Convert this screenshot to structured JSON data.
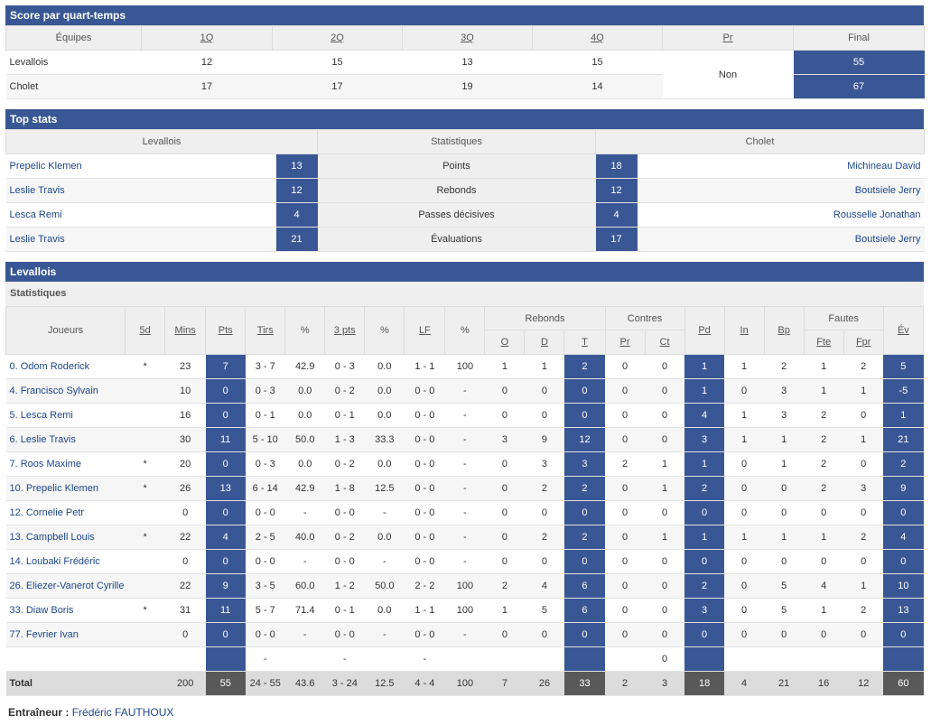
{
  "quarters": {
    "title": "Score par quart-temps",
    "headers": [
      "Équipes",
      "1Q",
      "2Q",
      "3Q",
      "4Q",
      "Pr",
      "Final"
    ],
    "prolongation": "Non",
    "rows": [
      {
        "team": "Levallois",
        "q": [
          "12",
          "15",
          "13",
          "15"
        ],
        "final": "55"
      },
      {
        "team": "Cholet",
        "q": [
          "17",
          "17",
          "19",
          "14"
        ],
        "final": "67"
      }
    ]
  },
  "top_stats": {
    "title": "Top stats",
    "headers": [
      "Levallois",
      "Statistiques",
      "Cholet"
    ],
    "rows": [
      {
        "home_player": "Prepelic Klemen",
        "home_val": "13",
        "stat": "Points",
        "away_val": "18",
        "away_player": "Michineau David"
      },
      {
        "home_player": "Leslie Travis",
        "home_val": "12",
        "stat": "Rebonds",
        "away_val": "12",
        "away_player": "Boutsiele Jerry"
      },
      {
        "home_player": "Lesca Remi",
        "home_val": "4",
        "stat": "Passes décisives",
        "away_val": "4",
        "away_player": "Rousselle Jonathan"
      },
      {
        "home_player": "Leslie Travis",
        "home_val": "21",
        "stat": "Évaluations",
        "away_val": "17",
        "away_player": "Boutsiele Jerry"
      }
    ]
  },
  "team_stats": {
    "title": "Levallois",
    "subtitle": "Statistiques",
    "headers": {
      "joueurs": "Joueurs",
      "sd": "5d",
      "mins": "Mins",
      "pts": "Pts",
      "tirs": "Tirs",
      "pct": "%",
      "tp": "3 pts",
      "tp_pct": "%",
      "lf": "LF",
      "lf_pct": "%",
      "rebonds": "Rebonds",
      "o": "O",
      "d": "D",
      "t": "T",
      "contres": "Contres",
      "pr": "Pr",
      "ct": "Ct",
      "pd": "Pd",
      "in": "In",
      "bp": "Bp",
      "fautes": "Fautes",
      "fte": "Fte",
      "fpr": "Fpr",
      "ev": "Év"
    },
    "players": [
      [
        "0. Odom Roderick",
        "*",
        "23",
        "7",
        "3 - 7",
        "42.9",
        "0 - 3",
        "0.0",
        "1 - 1",
        "100",
        "1",
        "1",
        "2",
        "0",
        "0",
        "1",
        "1",
        "2",
        "1",
        "2",
        "5"
      ],
      [
        "4. Francisco Sylvain",
        "",
        "10",
        "0",
        "0 - 3",
        "0.0",
        "0 - 2",
        "0.0",
        "0 - 0",
        "-",
        "0",
        "0",
        "0",
        "0",
        "0",
        "1",
        "0",
        "3",
        "1",
        "1",
        "-5"
      ],
      [
        "5. Lesca Remi",
        "",
        "16",
        "0",
        "0 - 1",
        "0.0",
        "0 - 1",
        "0.0",
        "0 - 0",
        "-",
        "0",
        "0",
        "0",
        "0",
        "0",
        "4",
        "1",
        "3",
        "2",
        "0",
        "1"
      ],
      [
        "6. Leslie Travis",
        "",
        "30",
        "11",
        "5 - 10",
        "50.0",
        "1 - 3",
        "33.3",
        "0 - 0",
        "-",
        "3",
        "9",
        "12",
        "0",
        "0",
        "3",
        "1",
        "1",
        "2",
        "1",
        "21"
      ],
      [
        "7. Roos Maxime",
        "*",
        "20",
        "0",
        "0 - 3",
        "0.0",
        "0 - 2",
        "0.0",
        "0 - 0",
        "-",
        "0",
        "3",
        "3",
        "2",
        "1",
        "1",
        "0",
        "1",
        "2",
        "0",
        "2"
      ],
      [
        "10. Prepelic Klemen",
        "*",
        "26",
        "13",
        "6 - 14",
        "42.9",
        "1 - 8",
        "12.5",
        "0 - 0",
        "-",
        "0",
        "2",
        "2",
        "0",
        "1",
        "2",
        "0",
        "0",
        "2",
        "3",
        "9"
      ],
      [
        "12. Cornelie Petr",
        "",
        "0",
        "0",
        "0 - 0",
        "-",
        "0 - 0",
        "-",
        "0 - 0",
        "-",
        "0",
        "0",
        "0",
        "0",
        "0",
        "0",
        "0",
        "0",
        "0",
        "0",
        "0"
      ],
      [
        "13. Campbell Louis",
        "*",
        "22",
        "4",
        "2 - 5",
        "40.0",
        "0 - 2",
        "0.0",
        "0 - 0",
        "-",
        "0",
        "2",
        "2",
        "0",
        "1",
        "1",
        "1",
        "1",
        "1",
        "2",
        "4"
      ],
      [
        "14. Loubaki Frédéric",
        "",
        "0",
        "0",
        "0 - 0",
        "-",
        "0 - 0",
        "-",
        "0 - 0",
        "-",
        "0",
        "0",
        "0",
        "0",
        "0",
        "0",
        "0",
        "0",
        "0",
        "0",
        "0"
      ],
      [
        "26. Eliezer-Vanerot Cyrille",
        "",
        "22",
        "9",
        "3 - 5",
        "60.0",
        "1 - 2",
        "50.0",
        "2 - 2",
        "100",
        "2",
        "4",
        "6",
        "0",
        "0",
        "2",
        "0",
        "5",
        "4",
        "1",
        "10"
      ],
      [
        "33. Diaw Boris",
        "*",
        "31",
        "11",
        "5 - 7",
        "71.4",
        "0 - 1",
        "0.0",
        "1 - 1",
        "100",
        "1",
        "5",
        "6",
        "0",
        "0",
        "3",
        "0",
        "5",
        "1",
        "2",
        "13"
      ],
      [
        "77. Fevrier Ivan",
        "",
        "0",
        "0",
        "0 - 0",
        "-",
        "0 - 0",
        "-",
        "0 - 0",
        "-",
        "0",
        "0",
        "0",
        "0",
        "0",
        "0",
        "0",
        "0",
        "0",
        "0",
        "0"
      ],
      [
        "",
        "",
        "",
        "",
        "-",
        "",
        "-",
        "",
        "-",
        "",
        "",
        "",
        "",
        "",
        "0",
        "",
        "",
        "",
        "",
        "",
        ""
      ]
    ],
    "total": [
      "Total",
      "",
      "200",
      "55",
      "24 - 55",
      "43.6",
      "3 - 24",
      "12.5",
      "4 - 4",
      "100",
      "7",
      "26",
      "33",
      "2",
      "3",
      "18",
      "4",
      "21",
      "16",
      "12",
      "60"
    ]
  },
  "coach": {
    "label": "Entraîneur :",
    "name": "Frédéric FAUTHOUX"
  },
  "colors": {
    "accent": "#3a5795",
    "total_dark": "#595959"
  }
}
